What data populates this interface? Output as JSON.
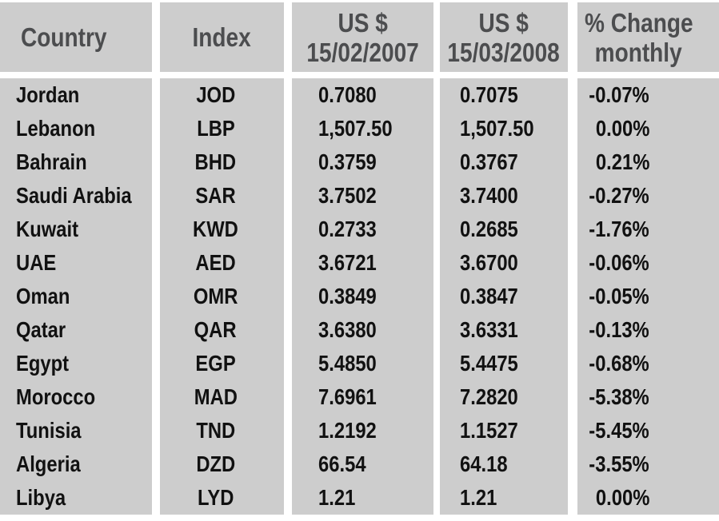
{
  "colors": {
    "cell_background": "#cdcdcd",
    "gutter": "#ffffff",
    "header_text": "#4c4d4f",
    "body_text": "#111111"
  },
  "table": {
    "headers": {
      "country": "Country",
      "index": "Index",
      "usd_2007_line1": "US $",
      "usd_2007_line2": "15/02/2007",
      "usd_2008_line1": "US $",
      "usd_2008_line2": "15/03/2008",
      "change_line1": "% Change",
      "change_line2": "monthly"
    },
    "rows": [
      {
        "country": "Jordan",
        "index": "JOD",
        "usd_2007": "0.7080",
        "usd_2008": "0.7075",
        "change": "-0.07%"
      },
      {
        "country": "Lebanon",
        "index": "LBP",
        "usd_2007": "1,507.50",
        "usd_2008": "1,507.50",
        "change": "0.00%"
      },
      {
        "country": "Bahrain",
        "index": "BHD",
        "usd_2007": "0.3759",
        "usd_2008": "0.3767",
        "change": "0.21%"
      },
      {
        "country": "Saudi Arabia",
        "index": "SAR",
        "usd_2007": "3.7502",
        "usd_2008": "3.7400",
        "change": "-0.27%"
      },
      {
        "country": "Kuwait",
        "index": "KWD",
        "usd_2007": "0.2733",
        "usd_2008": "0.2685",
        "change": "-1.76%"
      },
      {
        "country": "UAE",
        "index": "AED",
        "usd_2007": "3.6721",
        "usd_2008": "3.6700",
        "change": "-0.06%"
      },
      {
        "country": "Oman",
        "index": "OMR",
        "usd_2007": "0.3849",
        "usd_2008": "0.3847",
        "change": "-0.05%"
      },
      {
        "country": "Qatar",
        "index": "QAR",
        "usd_2007": "3.6380",
        "usd_2008": "3.6331",
        "change": "-0.13%"
      },
      {
        "country": "Egypt",
        "index": "EGP",
        "usd_2007": "5.4850",
        "usd_2008": "5.4475",
        "change": "-0.68%"
      },
      {
        "country": "Morocco",
        "index": "MAD",
        "usd_2007": "7.6961",
        "usd_2008": "7.2820",
        "change": "-5.38%"
      },
      {
        "country": "Tunisia",
        "index": "TND",
        "usd_2007": "1.2192",
        "usd_2008": "1.1527",
        "change": "-5.45%"
      },
      {
        "country": "Algeria",
        "index": "DZD",
        "usd_2007": "66.54",
        "usd_2008": "64.18",
        "change": "-3.55%"
      },
      {
        "country": "Libya",
        "index": "LYD",
        "usd_2007": "1.21",
        "usd_2008": "1.21",
        "change": "0.00%"
      }
    ]
  },
  "chart_data": {
    "type": "table",
    "title": "Arab currencies vs US $ — monthly change",
    "columns": [
      "Country",
      "Index",
      "US $ 15/02/2007",
      "US $ 15/03/2008",
      "% Change monthly"
    ],
    "rows": [
      [
        "Jordan",
        "JOD",
        0.708,
        0.7075,
        -0.07
      ],
      [
        "Lebanon",
        "LBP",
        1507.5,
        1507.5,
        0.0
      ],
      [
        "Bahrain",
        "BHD",
        0.3759,
        0.3767,
        0.21
      ],
      [
        "Saudi Arabia",
        "SAR",
        3.7502,
        3.74,
        -0.27
      ],
      [
        "Kuwait",
        "KWD",
        0.2733,
        0.2685,
        -1.76
      ],
      [
        "UAE",
        "AED",
        3.6721,
        3.67,
        -0.06
      ],
      [
        "Oman",
        "OMR",
        0.3849,
        0.3847,
        -0.05
      ],
      [
        "Qatar",
        "QAR",
        3.638,
        3.6331,
        -0.13
      ],
      [
        "Egypt",
        "EGP",
        5.485,
        5.4475,
        -0.68
      ],
      [
        "Morocco",
        "MAD",
        7.6961,
        7.282,
        -5.38
      ],
      [
        "Tunisia",
        "TND",
        1.2192,
        1.1527,
        -5.45
      ],
      [
        "Algeria",
        "DZD",
        66.54,
        64.18,
        -3.55
      ],
      [
        "Libya",
        "LYD",
        1.21,
        1.21,
        0.0
      ]
    ]
  }
}
